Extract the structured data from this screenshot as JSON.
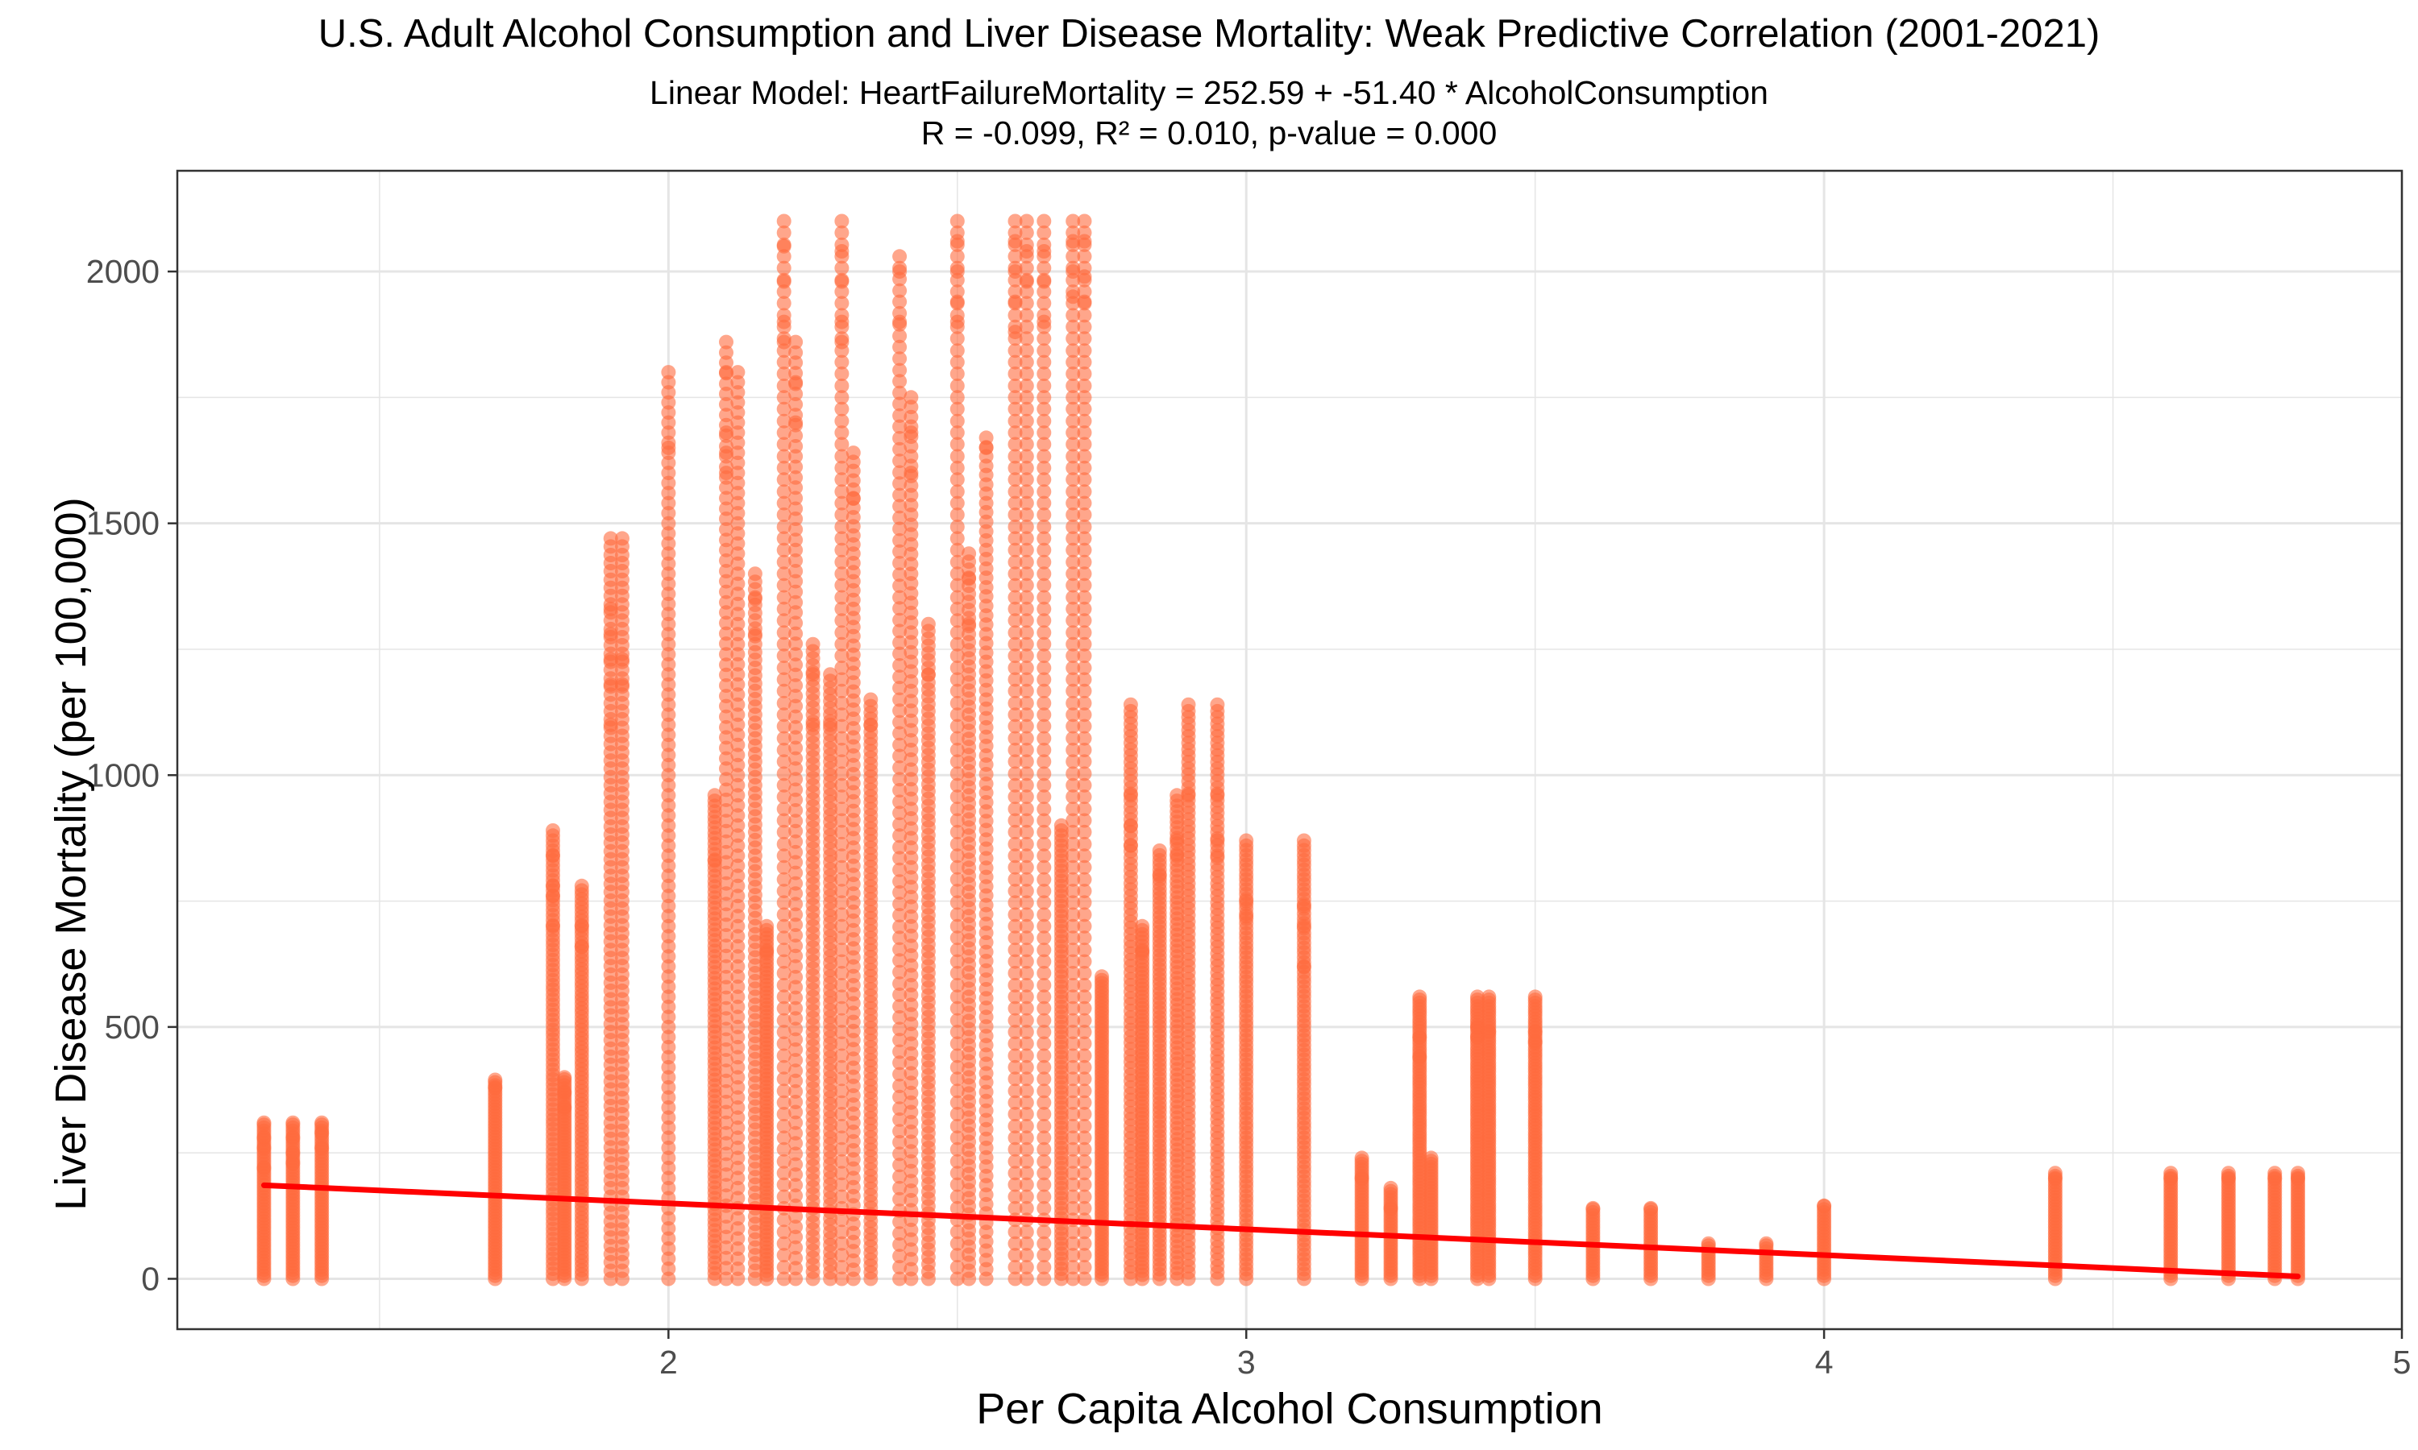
{
  "chart_data": {
    "type": "scatter",
    "title": "U.S. Adult Alcohol Consumption and Liver Disease Mortality: Weak Predictive Correlation (2001-2021)",
    "subtitle_lines": [
      "Linear Model: HeartFailureMortality = 252.59 + -51.40 * AlcoholConsumption",
      "R = -0.099, R² = 0.010, p-value = 0.000"
    ],
    "xlabel": "Per Capita Alcohol Consumption",
    "ylabel": "Liver Disease Mortality (per 100,000)",
    "xlim": [
      1.15,
      5.0
    ],
    "ylim": [
      -100,
      2200
    ],
    "x_ticks": [
      2,
      3,
      4,
      5
    ],
    "y_ticks": [
      0,
      500,
      1000,
      1500,
      2000
    ],
    "grid": true,
    "legend": "none",
    "colors": {
      "points": "#ff6a3d",
      "regression_line": "#ff0000",
      "grid": "#e5e5e5",
      "panel_border": "#333333"
    },
    "regression": {
      "intercept": 252.59,
      "slope": -51.4,
      "x_range": [
        1.3,
        4.82
      ]
    },
    "point_columns": [
      {
        "x": 1.3,
        "ymax": 310,
        "top": [
          310,
          280,
          260,
          240,
          220
        ]
      },
      {
        "x": 1.35,
        "ymax": 310,
        "top": [
          310,
          280,
          250,
          230
        ]
      },
      {
        "x": 1.4,
        "ymax": 310,
        "top": [
          310,
          290,
          260,
          240
        ]
      },
      {
        "x": 1.7,
        "ymax": 395,
        "top": [
          395,
          380,
          330,
          300
        ]
      },
      {
        "x": 1.8,
        "ymax": 890,
        "top": [
          890,
          840,
          780,
          760,
          700
        ]
      },
      {
        "x": 1.82,
        "ymax": 400,
        "top": [
          400,
          370,
          340
        ]
      },
      {
        "x": 1.85,
        "ymax": 780,
        "top": [
          780,
          700,
          660
        ]
      },
      {
        "x": 1.9,
        "ymax": 1470,
        "top": [
          1470,
          1330,
          1280,
          1230,
          1180,
          1100
        ]
      },
      {
        "x": 1.92,
        "ymax": 1470,
        "top": [
          1470,
          1230,
          1180
        ]
      },
      {
        "x": 2.0,
        "ymax": 1800,
        "top": [
          1800,
          1650,
          1620,
          1560,
          1500
        ]
      },
      {
        "x": 2.08,
        "ymax": 960,
        "top": [
          960,
          830
        ]
      },
      {
        "x": 2.1,
        "ymax": 1860,
        "top": [
          1860,
          1800,
          1680,
          1640,
          1600
        ]
      },
      {
        "x": 2.12,
        "ymax": 1800,
        "top": [
          1800,
          1620,
          1580
        ]
      },
      {
        "x": 2.15,
        "ymax": 1400,
        "top": [
          1400,
          1350,
          1280
        ]
      },
      {
        "x": 2.17,
        "ymax": 700,
        "top": [
          700,
          650
        ]
      },
      {
        "x": 2.2,
        "ymax": 2100,
        "top": [
          2100,
          2050,
          1980,
          1900,
          1860
        ]
      },
      {
        "x": 2.22,
        "ymax": 1860,
        "top": [
          1860,
          1780,
          1700
        ]
      },
      {
        "x": 2.25,
        "ymax": 1260,
        "top": [
          1260,
          1200,
          1100
        ]
      },
      {
        "x": 2.28,
        "ymax": 1200,
        "top": [
          1200,
          1100
        ]
      },
      {
        "x": 2.3,
        "ymax": 2100,
        "top": [
          2100,
          2040,
          1980,
          1900,
          1860
        ]
      },
      {
        "x": 2.32,
        "ymax": 1640,
        "top": [
          1640,
          1550
        ]
      },
      {
        "x": 2.35,
        "ymax": 1150,
        "top": [
          1150,
          1100
        ]
      },
      {
        "x": 2.4,
        "ymax": 2030,
        "top": [
          2030,
          2000,
          1940,
          1900,
          1850
        ]
      },
      {
        "x": 2.42,
        "ymax": 1750,
        "top": [
          1750,
          1680,
          1600
        ]
      },
      {
        "x": 2.45,
        "ymax": 1300,
        "top": [
          1300,
          1200
        ]
      },
      {
        "x": 2.5,
        "ymax": 2100,
        "top": [
          2100,
          2060,
          2000,
          1940,
          1900
        ]
      },
      {
        "x": 2.52,
        "ymax": 1440,
        "top": [
          1440,
          1390,
          1300
        ]
      },
      {
        "x": 2.55,
        "ymax": 1670,
        "top": [
          1670,
          1650
        ]
      },
      {
        "x": 2.6,
        "ymax": 2100,
        "top": [
          2100,
          2060,
          2000,
          1940,
          1880
        ]
      },
      {
        "x": 2.62,
        "ymax": 2100,
        "top": [
          2100,
          2040,
          1980
        ]
      },
      {
        "x": 2.65,
        "ymax": 2100,
        "top": [
          2100,
          2040,
          1980,
          1900
        ]
      },
      {
        "x": 2.68,
        "ymax": 900,
        "top": [
          900,
          820
        ]
      },
      {
        "x": 2.7,
        "ymax": 2100,
        "top": [
          2100,
          2060,
          2000,
          1950
        ]
      },
      {
        "x": 2.72,
        "ymax": 2100,
        "top": [
          2100,
          2060,
          1990,
          1940
        ]
      },
      {
        "x": 2.75,
        "ymax": 600,
        "top": [
          600,
          560
        ]
      },
      {
        "x": 2.8,
        "ymax": 1140,
        "top": [
          1140,
          960,
          900,
          860
        ]
      },
      {
        "x": 2.82,
        "ymax": 700,
        "top": [
          700,
          650
        ]
      },
      {
        "x": 2.85,
        "ymax": 850,
        "top": [
          850,
          800
        ]
      },
      {
        "x": 2.88,
        "ymax": 960,
        "top": [
          960,
          870,
          840
        ]
      },
      {
        "x": 2.9,
        "ymax": 1140,
        "top": [
          1140,
          960
        ]
      },
      {
        "x": 2.95,
        "ymax": 1140,
        "top": [
          1140,
          960,
          870,
          840
        ]
      },
      {
        "x": 3.0,
        "ymax": 870,
        "top": [
          870,
          750,
          720
        ]
      },
      {
        "x": 3.1,
        "ymax": 870,
        "top": [
          870,
          740,
          700,
          620
        ]
      },
      {
        "x": 3.2,
        "ymax": 240,
        "top": [
          240,
          200,
          180
        ]
      },
      {
        "x": 3.25,
        "ymax": 180,
        "top": [
          180,
          140
        ]
      },
      {
        "x": 3.3,
        "ymax": 560,
        "top": [
          560,
          480,
          440
        ]
      },
      {
        "x": 3.32,
        "ymax": 240,
        "top": [
          240,
          180
        ]
      },
      {
        "x": 3.4,
        "ymax": 560,
        "top": [
          560,
          500,
          480
        ]
      },
      {
        "x": 3.42,
        "ymax": 560,
        "top": [
          560,
          490
        ]
      },
      {
        "x": 3.5,
        "ymax": 560,
        "top": [
          560,
          490,
          470
        ]
      },
      {
        "x": 3.6,
        "ymax": 140,
        "top": [
          140,
          120
        ]
      },
      {
        "x": 3.7,
        "ymax": 140,
        "top": [
          140,
          120
        ]
      },
      {
        "x": 3.8,
        "ymax": 70,
        "top": [
          70,
          60
        ]
      },
      {
        "x": 3.9,
        "ymax": 70,
        "top": [
          70,
          60
        ]
      },
      {
        "x": 4.0,
        "ymax": 145,
        "top": [
          145,
          120
        ]
      },
      {
        "x": 4.4,
        "ymax": 210,
        "top": [
          210,
          200,
          180
        ]
      },
      {
        "x": 4.6,
        "ymax": 210,
        "top": [
          210,
          200,
          180
        ]
      },
      {
        "x": 4.7,
        "ymax": 210,
        "top": [
          210,
          200,
          180
        ]
      },
      {
        "x": 4.78,
        "ymax": 210,
        "top": [
          210,
          200,
          180
        ]
      },
      {
        "x": 4.82,
        "ymax": 210,
        "top": [
          210,
          200,
          180
        ]
      }
    ]
  }
}
